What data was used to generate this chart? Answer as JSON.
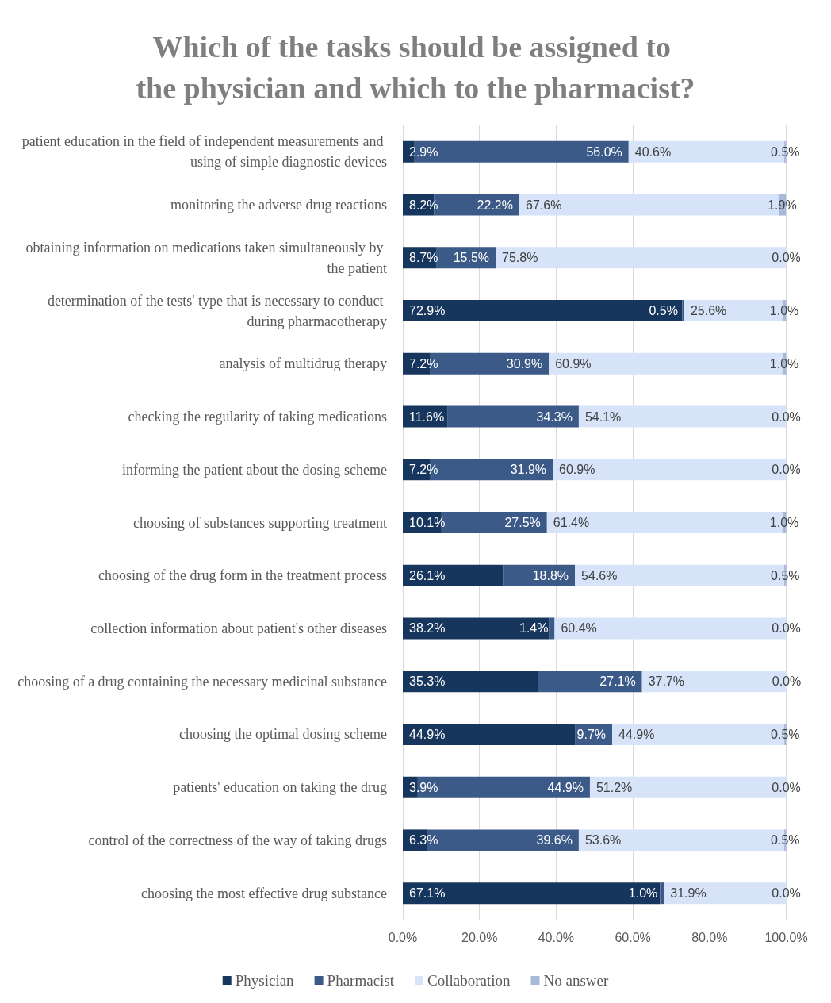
{
  "chart_data": {
    "type": "bar",
    "orientation": "horizontal",
    "stacked": true,
    "title": "Which of the tasks should be assigned to the physician and which to the pharmacist?",
    "categories": [
      "patient education in the field of independent measurements and using of simple diagnostic devices",
      "monitoring the adverse drug reactions",
      "obtaining information on medications taken simultaneously by the patient",
      "determination of the tests' type that is necessary to conduct during pharmacotherapy",
      "analysis of multidrug therapy",
      "checking the regularity of taking medications",
      "informing the patient about the dosing scheme",
      "choosing of substances supporting treatment",
      "choosing of the drug form in the treatment process",
      "collection information about patient's other diseases",
      "choosing of a drug containing the necessary medicinal substance",
      "choosing the optimal dosing scheme",
      "patients' education on taking the drug",
      "control of the correctness of the way of taking drugs",
      "choosing the most effective drug substance"
    ],
    "series": [
      {
        "name": "Physician",
        "color": "#17365d",
        "values": [
          2.9,
          8.2,
          8.7,
          72.9,
          7.2,
          11.6,
          7.2,
          10.1,
          26.1,
          38.2,
          35.3,
          44.9,
          3.9,
          6.3,
          67.1
        ],
        "value_labels": [
          "2.9%",
          "8.2%",
          "8.7%",
          "72.9%",
          "7.2%",
          "11.6%",
          "7.2%",
          "10.1%",
          "26.1%",
          "38.2%",
          "35.3%",
          "44.9%",
          "3.9%",
          "6.3%",
          "67.1%"
        ]
      },
      {
        "name": "Pharmacist",
        "color": "#3c5a87",
        "values": [
          56.0,
          22.2,
          15.5,
          0.5,
          30.9,
          34.3,
          31.9,
          27.5,
          18.8,
          1.4,
          27.1,
          9.7,
          44.9,
          39.6,
          1.0
        ],
        "value_labels": [
          "56.0%",
          "22.2%",
          "15.5%",
          "0.5%",
          "30.9%",
          "34.3%",
          "31.9%",
          "27.5%",
          "18.8%",
          "1.4%",
          "27.1%",
          "9.7%",
          "44.9%",
          "39.6%",
          "1.0%"
        ]
      },
      {
        "name": "Collaboration",
        "color": "#d6e3f8",
        "values": [
          40.6,
          67.6,
          75.8,
          25.6,
          60.9,
          54.1,
          60.9,
          61.4,
          54.6,
          60.4,
          37.7,
          44.9,
          51.2,
          53.6,
          31.9
        ],
        "value_labels": [
          "40.6%",
          "67.6%",
          "75.8%",
          "25.6%",
          "60.9%",
          "54.1%",
          "60.9%",
          "61.4%",
          "54.6%",
          "60.4%",
          "37.7%",
          "44.9%",
          "51.2%",
          "53.6%",
          "31.9%"
        ]
      },
      {
        "name": "No answer",
        "color": "#a9b9dc",
        "values": [
          0.5,
          1.9,
          0.0,
          1.0,
          1.0,
          0.0,
          0.0,
          1.0,
          0.5,
          0.0,
          0.0,
          0.5,
          0.0,
          0.5,
          0.0
        ],
        "value_labels": [
          "0.5%",
          "1.9%",
          "0.0%",
          "1.0%",
          "1.0%",
          "0.0%",
          "0.0%",
          "1.0%",
          "0.5%",
          "0.0%",
          "0.0%",
          "0.5%",
          "0.0%",
          "0.5%",
          "0.0%"
        ]
      }
    ],
    "xlim": [
      0,
      100.1
    ],
    "xticks": [
      {
        "value": 0,
        "label": "0.0%"
      },
      {
        "value": 20,
        "label": "20.0%"
      },
      {
        "value": 40,
        "label": "40.0%"
      },
      {
        "value": 60,
        "label": "60.0%"
      },
      {
        "value": 80,
        "label": "80.0%"
      },
      {
        "value": 100,
        "label": "100.0%"
      }
    ],
    "grid": "x",
    "legend": "bottom"
  }
}
